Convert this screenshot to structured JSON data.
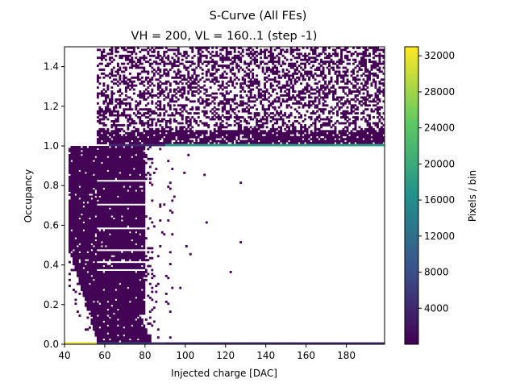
{
  "chart_data": {
    "type": "heatmap",
    "title": "S-Curve (All FEs)",
    "subtitle": "VH = 200, VL = 160..1 (step -1)",
    "xlabel": "Injected charge [DAC]",
    "ylabel": "Occupancy",
    "colorbar_label": "Pixels / bin",
    "colormap": "viridis",
    "xlim": [
      40,
      199
    ],
    "ylim": [
      0,
      1.5
    ],
    "x_ticks": [
      "40",
      "60",
      "80",
      "100",
      "120",
      "140",
      "160",
      "180"
    ],
    "y_ticks": [
      "0.0",
      "0.2",
      "0.4",
      "0.6",
      "0.8",
      "1.0",
      "1.2",
      "1.4"
    ],
    "colorbar_range": [
      0,
      33000
    ],
    "colorbar_ticks": [
      "4000",
      "8000",
      "12000",
      "16000",
      "20000",
      "24000",
      "28000",
      "32000"
    ],
    "grid": false,
    "x_bin_width": 1,
    "y_bin_width": 0.01,
    "features": {
      "occupancy_zero_row": {
        "x_range": [
          40,
          199
        ],
        "pixels_per_bin": [
          32000,
          4000
        ]
      },
      "occupancy_one_row": {
        "x_range": [
          62,
          199
        ],
        "pixels_per_bin": 18000
      },
      "transition_band": {
        "x_range": [
          42,
          84
        ],
        "occupancy_range": [
          0,
          1.0
        ],
        "pixels_per_bin": 300
      },
      "overflow_noise": {
        "x_range": [
          56,
          199
        ],
        "occupancy_range": [
          1.01,
          1.5
        ],
        "pixels_per_bin": 50
      }
    }
  }
}
